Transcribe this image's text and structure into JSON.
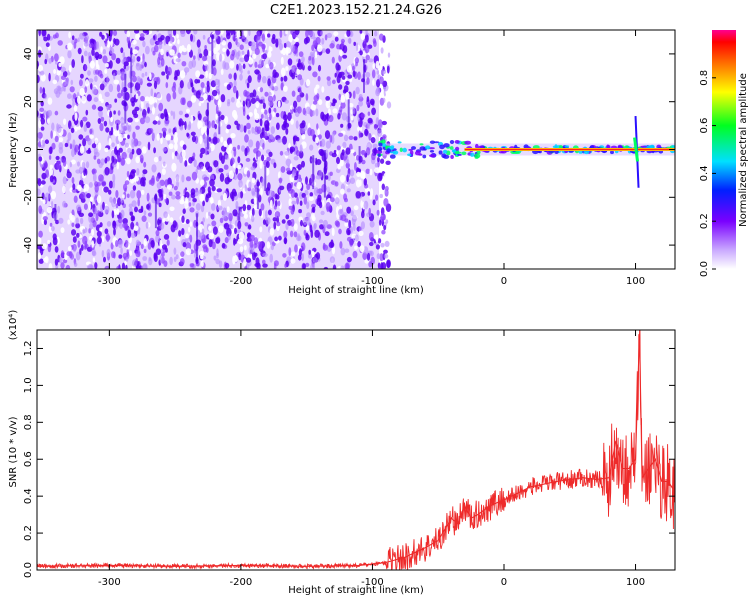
{
  "title": "C2E1.2023.152.21.24.G26",
  "colors": {
    "cloud": "#7a00ff",
    "spine_hot": "#ff2020",
    "spine_cool": "#00d0ff",
    "snr_line": "#ee2a2a"
  },
  "colorbar": {
    "label": "Normalized spectral amplitude",
    "ticks": [
      "0.0",
      "0.2",
      "0.4",
      "0.6",
      "0.8"
    ]
  },
  "chart_data": [
    {
      "type": "heatmap",
      "name": "spectrogram",
      "xlabel": "Height of straight line (km)",
      "ylabel": "Frequency (Hz)",
      "xlim": [
        -355,
        130
      ],
      "ylim": [
        -50,
        50
      ],
      "xticks": [
        -300,
        -200,
        -100,
        0,
        100
      ],
      "xtick_labels": [
        "-300",
        "-200",
        "-100",
        "0",
        "100"
      ],
      "yticks": [
        -40,
        -20,
        0,
        20,
        40
      ],
      "ytick_labels": [
        "-40",
        "-20",
        "0",
        "20",
        "40"
      ],
      "colorbar_range": [
        0,
        1
      ],
      "noise_region_x": [
        -355,
        -95
      ],
      "signal_line_y": 0,
      "signal_start_x": -95
    },
    {
      "type": "line",
      "name": "snr",
      "xlabel": "Height of straight line (km)",
      "ylabel": "SNR (10 * v/v)",
      "y_multiplier": "(x10⁴)",
      "xlim": [
        -355,
        130
      ],
      "ylim": [
        0,
        1.3
      ],
      "xticks": [
        -300,
        -200,
        -100,
        0,
        100
      ],
      "xtick_labels": [
        "-300",
        "-200",
        "-100",
        "0",
        "100"
      ],
      "yticks": [
        0,
        0.2,
        0.4,
        0.6,
        0.8,
        1.0,
        1.2
      ],
      "ytick_labels": [
        "0.0",
        "0.2",
        "0.4",
        "0.6",
        "0.8",
        "1.0",
        "1.2"
      ],
      "series": [
        {
          "x": [
            -355,
            -300,
            -250,
            -200,
            -150,
            -110,
            -90,
            -75,
            -60,
            -50,
            -45,
            -40,
            -35,
            -30,
            -25,
            -20,
            -10,
            0,
            20,
            40,
            60,
            70,
            80,
            85,
            90,
            95,
            100,
            103,
            105,
            110,
            115,
            120,
            125,
            130
          ],
          "y": [
            0.02,
            0.025,
            0.02,
            0.025,
            0.02,
            0.025,
            0.04,
            0.07,
            0.12,
            0.16,
            0.22,
            0.28,
            0.25,
            0.35,
            0.28,
            0.3,
            0.35,
            0.38,
            0.45,
            0.48,
            0.5,
            0.49,
            0.5,
            0.7,
            0.55,
            0.55,
            0.6,
            1.28,
            0.5,
            0.55,
            0.6,
            0.48,
            0.48,
            0.42
          ]
        }
      ]
    }
  ]
}
